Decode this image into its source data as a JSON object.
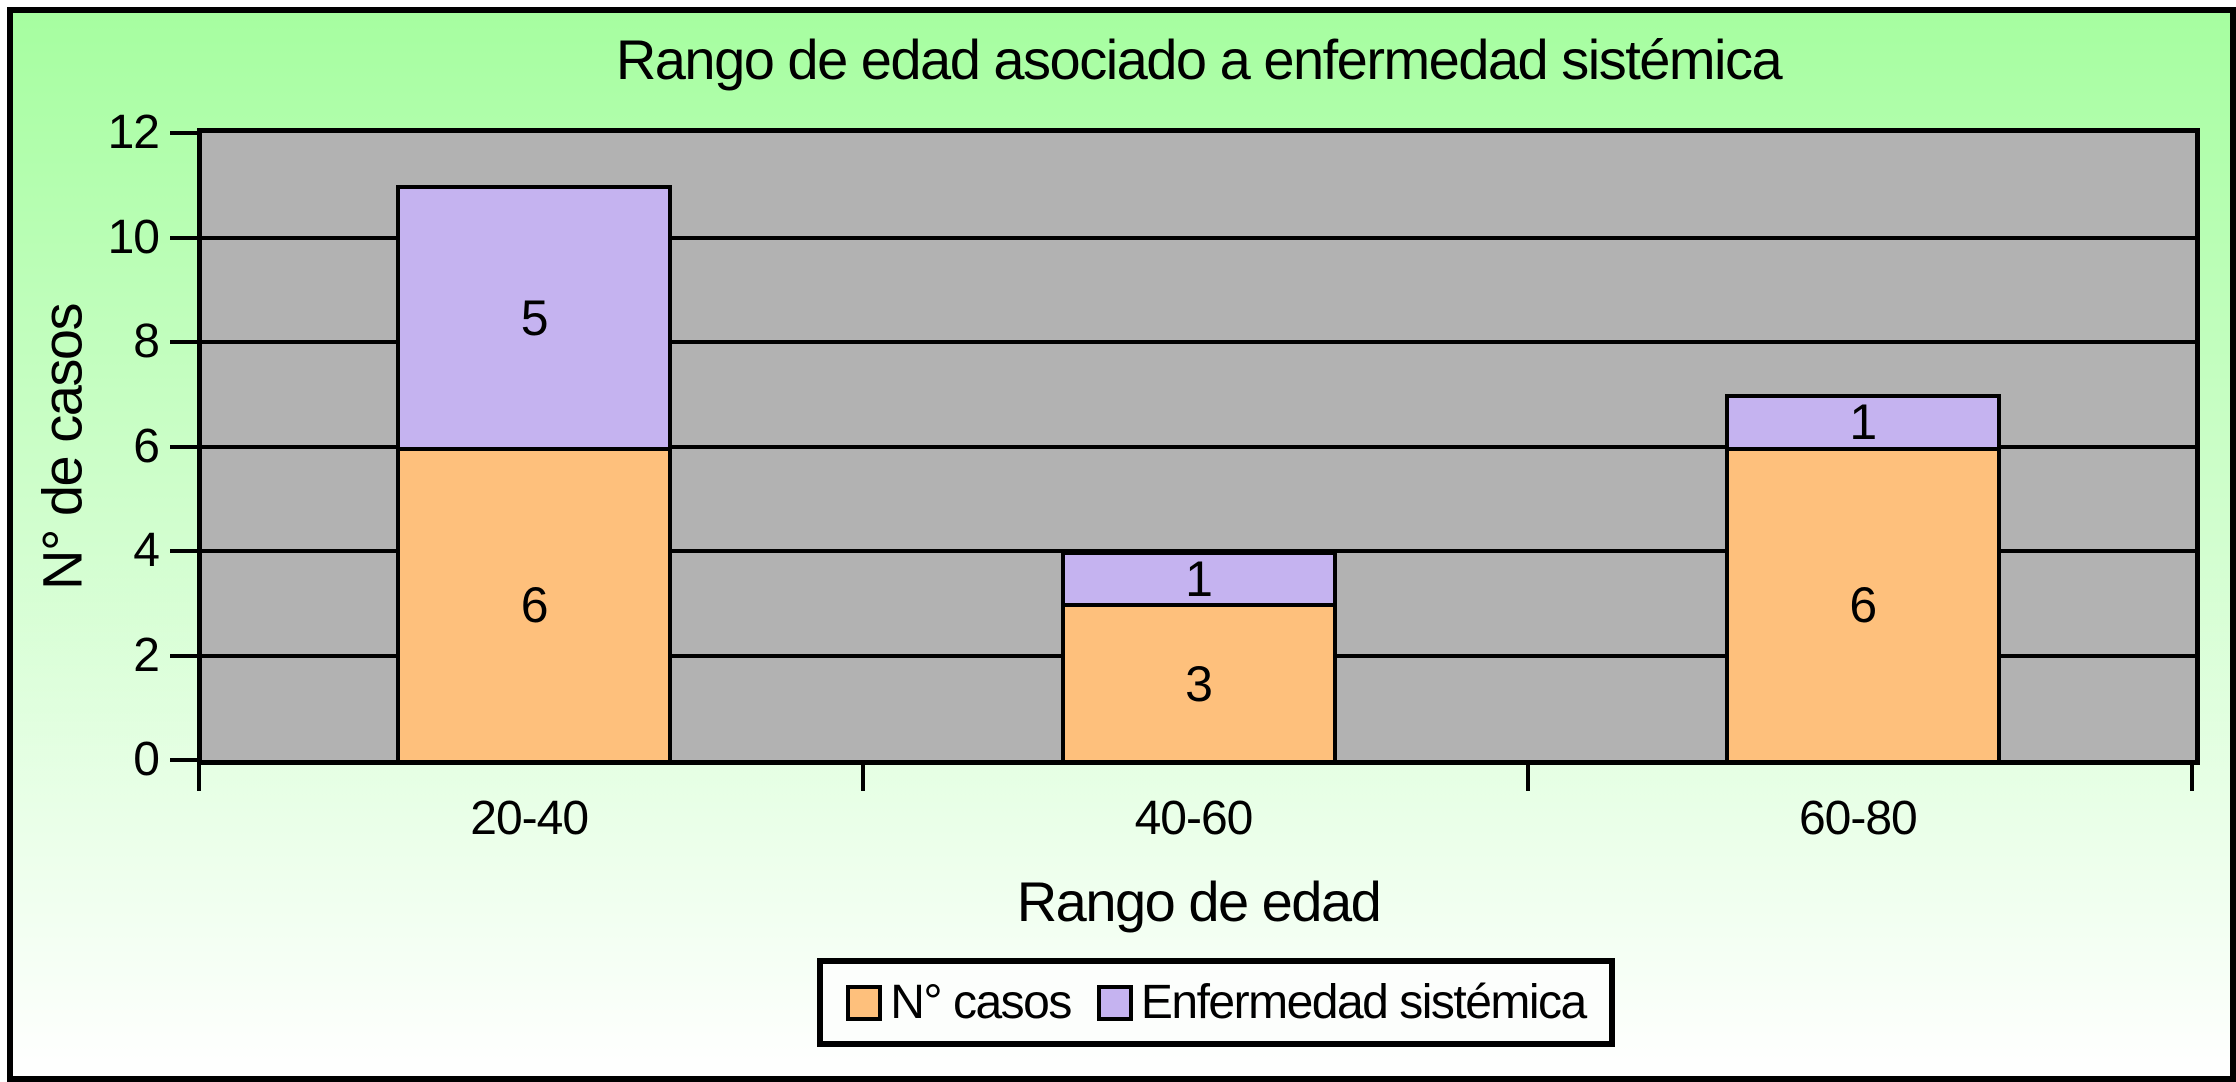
{
  "chart_data": {
    "type": "bar",
    "stacked": true,
    "title": "Rango de edad asociado a enfermedad sistémica",
    "xlabel": "Rango de edad",
    "ylabel": "N° de casos",
    "categories": [
      "20-40",
      "40-60",
      "60-80"
    ],
    "series": [
      {
        "name": "N° casos",
        "color": "#fec07c",
        "values": [
          6,
          3,
          6
        ]
      },
      {
        "name": "Enfermedad sistémica",
        "color": "#c5b3f0",
        "values": [
          5,
          1,
          1
        ]
      }
    ],
    "ylim": [
      0,
      12
    ],
    "ytick_step": 2,
    "yticks": [
      "0",
      "2",
      "4",
      "6",
      "8",
      "10",
      "12"
    ],
    "grid": true,
    "legend_position": "bottom",
    "colors": {
      "plot_background": "#b2b2b2",
      "background_gradient_top": "#a6fea0",
      "background_gradient_bottom": "#ffffff",
      "axis_line": "#000000"
    },
    "data_labels": [
      {
        "category": "20-40",
        "N° casos": 6,
        "Enfermedad sistémica": 5
      },
      {
        "category": "40-60",
        "N° casos": 3,
        "Enfermedad sistémica": 1
      },
      {
        "category": "60-80",
        "N° casos": 6,
        "Enfermedad sistémica": 1
      }
    ]
  }
}
